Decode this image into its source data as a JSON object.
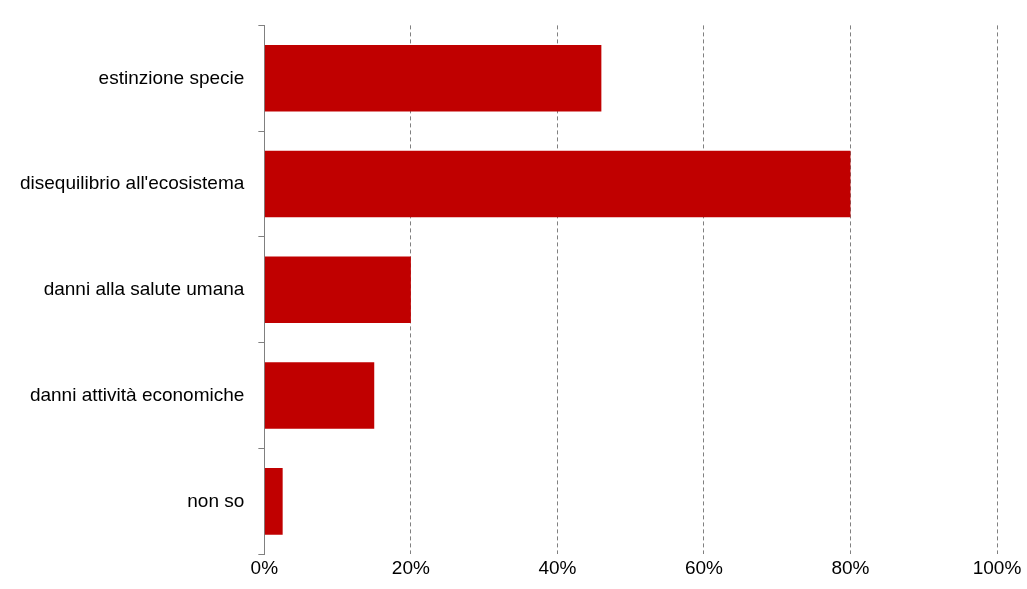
{
  "chart_data": {
    "type": "bar",
    "orientation": "horizontal",
    "categories": [
      "estinzione specie",
      "disequilibrio all'ecosistema",
      "danni alla salute umana",
      "danni attività economiche",
      "non so"
    ],
    "values": [
      46,
      80,
      20,
      15,
      2.5
    ],
    "color": "#c00000",
    "xlim": [
      0,
      100
    ],
    "xticks": [
      {
        "value": 0,
        "label": "0%"
      },
      {
        "value": 20,
        "label": "20%"
      },
      {
        "value": 40,
        "label": "40%"
      },
      {
        "value": 60,
        "label": "60%"
      },
      {
        "value": 80,
        "label": "80%"
      },
      {
        "value": 100,
        "label": "100%"
      }
    ],
    "grid": "x",
    "legend": false
  }
}
